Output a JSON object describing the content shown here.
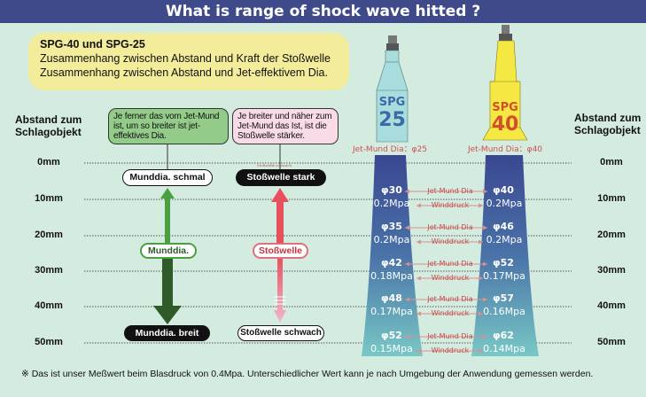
{
  "title": "What is range of shock wave hitted ?",
  "intro": {
    "line1": "SPG-40 und SPG-25",
    "line2": "Zusammenhang zwischen Abstand und Kraft der Stoßwelle",
    "line3": "Zusammenhang zwischen Abstand und Jet-effektivem Dia."
  },
  "axis_label": "Abstand zum Schlagobjekt",
  "distances": [
    "0mm",
    "10mm",
    "20mm",
    "30mm",
    "40mm",
    "50mm"
  ],
  "left": {
    "green_callout": "Je ferner das vom Jet-Mund ist, um so breiter ist jet-effektives Dia.",
    "pink_callout": "Je breiter und näher zum Jet-Mund das Ist, ist die Stoßwelle stärker.",
    "munddia_top": "Munddia. schmal",
    "munddia_mid": "Munddia.",
    "munddia_bottom": "Munddia. breit",
    "stoss_top": "Stoßwelle stark",
    "stoss_tiny": "Stoßwelle schwach",
    "stoss_mid": "Stoßwelle",
    "stoss_bottom": "Stoßwelle schwach"
  },
  "nozzles": [
    {
      "brand": "SPG",
      "model": "25",
      "mouth_label": "Jet-Mund Dia：φ25",
      "color": "#a9dcdc",
      "text_color": "#3c6aa8"
    },
    {
      "brand": "SPG",
      "model": "40",
      "mouth_label": "Jet-Mund Dia：φ40",
      "color": "#f5e843",
      "text_color": "#d0502a"
    }
  ],
  "row_labels": {
    "dia": "Jet-Mund Dia",
    "pressure": "Winddruck"
  },
  "rows": [
    {
      "spg25_dia": "φ30",
      "spg25_p": "0.2Mpa",
      "spg40_dia": "φ40",
      "spg40_p": "0.2Mpa"
    },
    {
      "spg25_dia": "φ35",
      "spg25_p": "0.2Mpa",
      "spg40_dia": "φ46",
      "spg40_p": "0.2Mpa"
    },
    {
      "spg25_dia": "φ42",
      "spg25_p": "0.18Mpa",
      "spg40_dia": "φ52",
      "spg40_p": "0.17Mpa"
    },
    {
      "spg25_dia": "φ48",
      "spg25_p": "0.17Mpa",
      "spg40_dia": "φ57",
      "spg40_p": "0.16Mpa"
    },
    {
      "spg25_dia": "φ52",
      "spg25_p": "0.15Mpa",
      "spg40_dia": "φ62",
      "spg40_p": "0.14Mpa"
    }
  ],
  "footnote": "※  Das ist unser Meßwert beim Blasdruck von 0.4Mpa. Unterschiedlicher Wert kann je nach Umgebung der Anwendung gemessen werden."
}
